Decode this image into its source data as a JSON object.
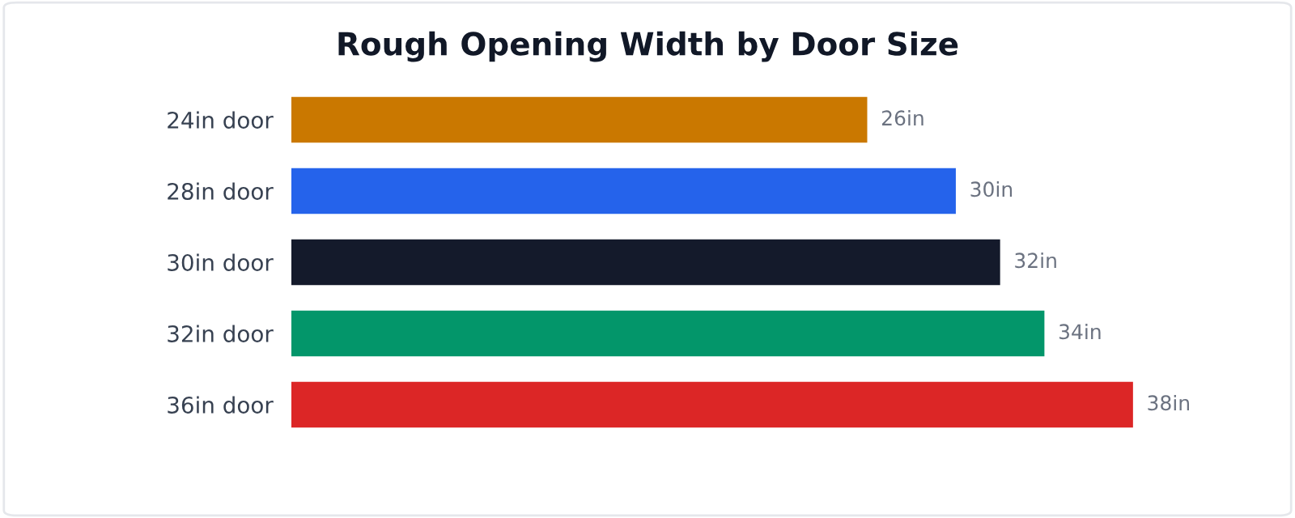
{
  "chart_data": {
    "type": "bar",
    "orientation": "horizontal",
    "title": "Rough Opening Width by Door Size",
    "categories": [
      "24in door",
      "28in door",
      "30in door",
      "32in door",
      "36in door"
    ],
    "values": [
      26,
      30,
      32,
      34,
      38
    ],
    "colors": [
      "#ca7800",
      "#2563eb",
      "#141a2b",
      "#03966a",
      "#dc2626"
    ],
    "value_labels": [
      "26in",
      "30in",
      "32in",
      "34in",
      "38in"
    ],
    "grid": false,
    "legend": false
  }
}
